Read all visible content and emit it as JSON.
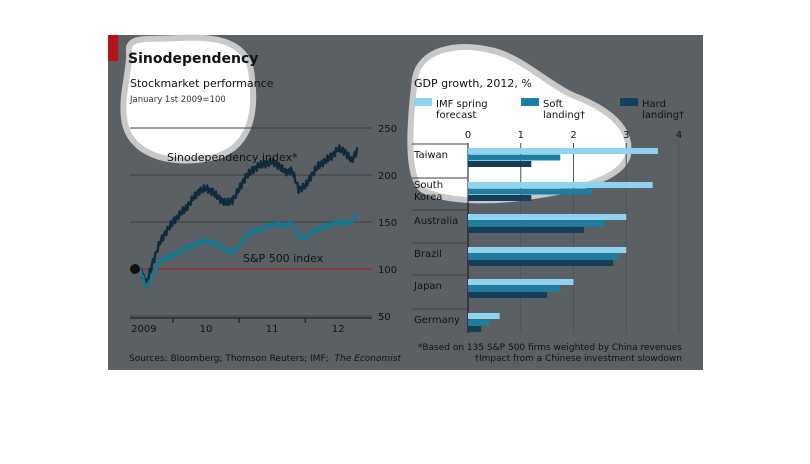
{
  "title": "Sinodependency",
  "sources_prefix": "Sources: Bloomberg; Thomson Reuters; IMF;",
  "sources_italic": "The Economist",
  "colors": {
    "panel_bg": "#5b6065",
    "accent_red": "#b5121b",
    "dark_line": "#0e2b3c",
    "teal_line": "#16788e",
    "imf_bar": "#8fd3f0",
    "soft_bar": "#1a7fa0",
    "hard_bar": "#163e58",
    "highlight": "#ffffff"
  },
  "chart_data": [
    {
      "type": "line",
      "title": "Stockmarket performance",
      "subtitle": "January 1st 2009=100",
      "x_ticks": [
        "2009",
        "10",
        "11",
        "12"
      ],
      "ylim": [
        50,
        250
      ],
      "y_ticks": [
        50,
        100,
        150,
        200,
        250
      ],
      "series": [
        {
          "name": "Sinodependency index*",
          "x": [
            2009.0,
            2009.1,
            2009.2,
            2009.3,
            2009.4,
            2009.5,
            2009.6,
            2009.7,
            2009.8,
            2009.9,
            2010.0,
            2010.1,
            2010.2,
            2010.3,
            2010.4,
            2010.5,
            2010.6,
            2010.7,
            2010.8,
            2010.9,
            2011.0,
            2011.1,
            2011.2,
            2011.3,
            2011.4,
            2011.5,
            2011.6,
            2011.7,
            2011.8,
            2011.9,
            2012.0,
            2012.1,
            2012.2,
            2012.3
          ],
          "values": [
            100,
            85,
            108,
            128,
            140,
            150,
            158,
            165,
            175,
            183,
            186,
            182,
            175,
            170,
            173,
            185,
            198,
            205,
            210,
            212,
            214,
            210,
            203,
            205,
            185,
            188,
            200,
            210,
            215,
            220,
            228,
            225,
            215,
            228
          ]
        },
        {
          "name": "S&P 500 index",
          "x": [
            2009.0,
            2009.1,
            2009.2,
            2009.3,
            2009.4,
            2009.5,
            2009.6,
            2009.7,
            2009.8,
            2009.9,
            2010.0,
            2010.1,
            2010.2,
            2010.3,
            2010.4,
            2010.5,
            2010.6,
            2010.7,
            2010.8,
            2010.9,
            2011.0,
            2011.1,
            2011.2,
            2011.3,
            2011.4,
            2011.5,
            2011.6,
            2011.7,
            2011.8,
            2011.9,
            2012.0,
            2012.1,
            2012.2,
            2012.3
          ],
          "values": [
            100,
            80,
            95,
            108,
            112,
            115,
            118,
            122,
            125,
            128,
            130,
            128,
            125,
            120,
            118,
            125,
            135,
            140,
            142,
            145,
            147,
            148,
            145,
            150,
            135,
            132,
            140,
            142,
            145,
            148,
            150,
            148,
            152,
            157
          ]
        }
      ],
      "line_labels": [
        "Sinodependency index*",
        "S&P 500 index"
      ]
    },
    {
      "type": "bar",
      "title": "GDP growth, 2012, %",
      "categories": [
        "Taiwan",
        "South\nKorea",
        "Australia",
        "Brazil",
        "Japan",
        "Germany"
      ],
      "category_lines": [
        [
          "Taiwan"
        ],
        [
          "South",
          "Korea"
        ],
        [
          "Australia"
        ],
        [
          "Brazil"
        ],
        [
          "Japan"
        ],
        [
          "Germany"
        ]
      ],
      "xlim": [
        0,
        4
      ],
      "x_ticks": [
        0,
        1,
        2,
        3,
        4
      ],
      "legend": [
        [
          "IMF spring",
          "forecast"
        ],
        [
          "Soft",
          "landing†"
        ],
        [
          "Hard",
          "landing†"
        ]
      ],
      "series": [
        {
          "name": "IMF spring forecast",
          "values": [
            3.6,
            3.5,
            3.0,
            3.0,
            2.0,
            0.6
          ]
        },
        {
          "name": "Soft landing",
          "values": [
            1.75,
            2.35,
            2.6,
            2.85,
            1.75,
            0.4
          ]
        },
        {
          "name": "Hard landing",
          "values": [
            1.2,
            1.2,
            2.2,
            2.75,
            1.5,
            0.25
          ]
        }
      ]
    }
  ],
  "footnotes": [
    "*Based on 135 S&P 500 firms weighted by China revenues",
    "†Impact from a Chinese investment slowdown"
  ]
}
